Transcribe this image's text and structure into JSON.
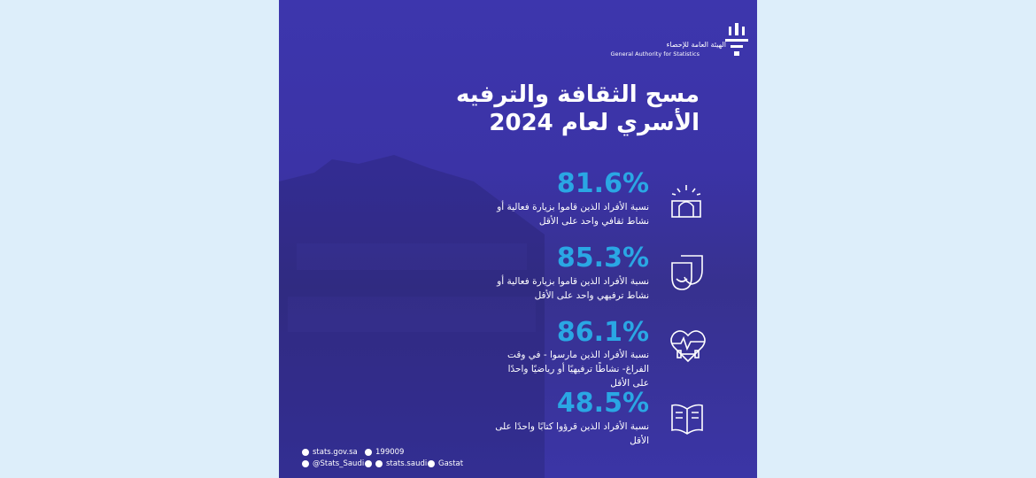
{
  "header": {
    "org_ar": "الهيئة العامة للإحصاء",
    "org_en": "General Authority for Statistics"
  },
  "title": {
    "line1": "مسح الثقافة والترفيه",
    "line2": "الأسري لعام 2024"
  },
  "stats": [
    {
      "value": "81.6%",
      "label": "نسبة الأفراد الذين قاموا بزيارة فعالية أو نشاط ثقافي واحد على الأقل"
    },
    {
      "value": "85.3%",
      "label": "نسبة الأفراد الذين قاموا بزيارة فعالية أو نشاط ترفيهي واحد على الأقل"
    },
    {
      "value": "86.1%",
      "label": "نسبة الأفراد الذين مارسوا - في وقت الفراغ- نشاطًا ترفيهيًا أو رياضيًا واحدًا على الأقل"
    },
    {
      "value": "48.5%",
      "label": "نسبة الأفراد الذين قرؤوا كتابًا واحدًا على الأقل"
    }
  ],
  "footer": {
    "website": "stats.gov.sa",
    "phone": "199009",
    "twitter": "@Stats_Saudi",
    "instagram": "stats.saudi",
    "youtube": "Gastat"
  }
}
